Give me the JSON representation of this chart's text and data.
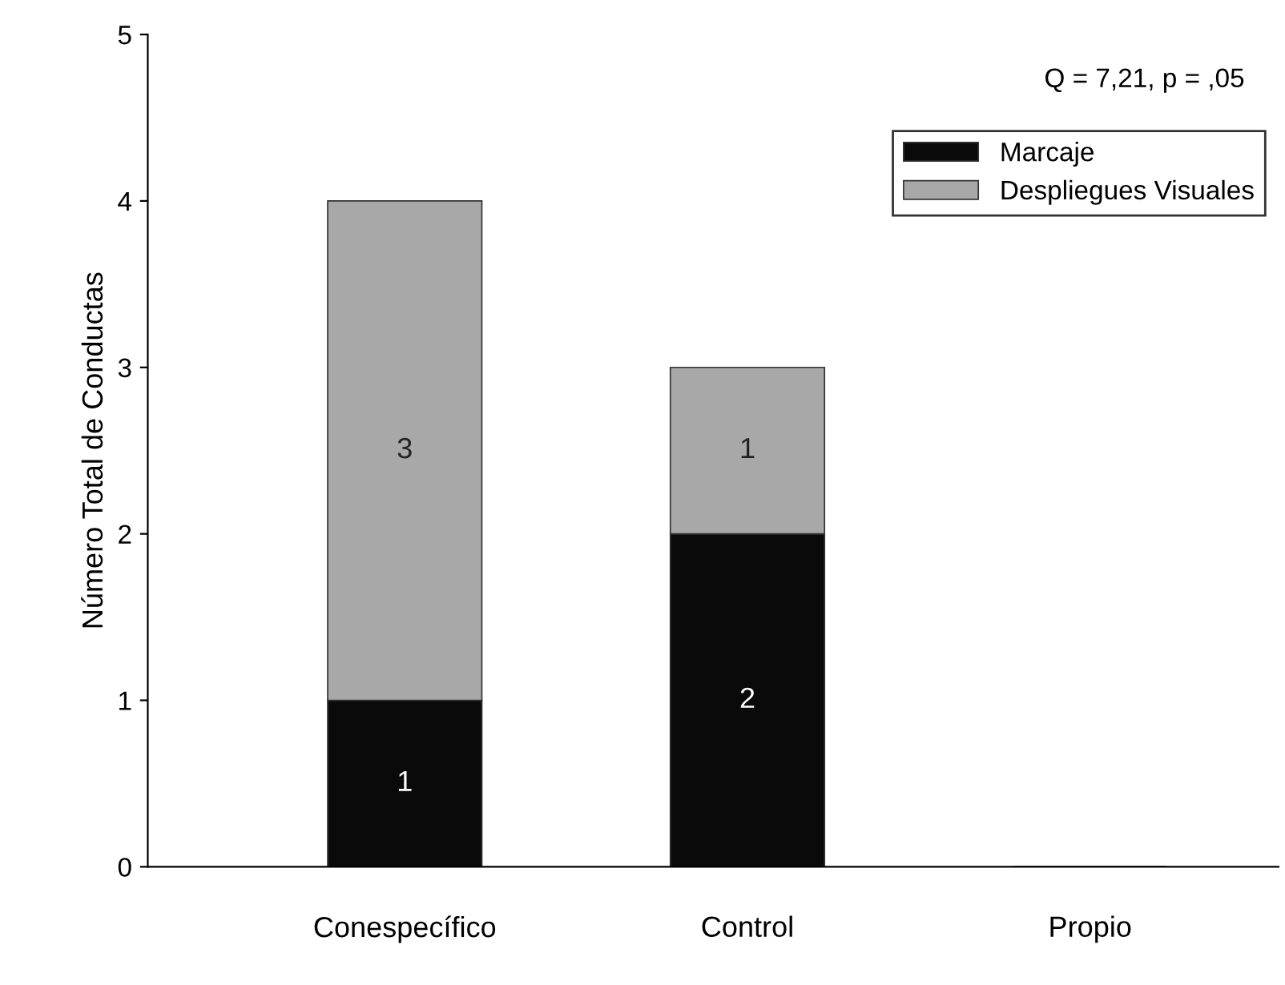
{
  "chart_data": {
    "type": "bar",
    "stacked": true,
    "ylabel": "Número Total de Conductas",
    "categories": [
      "Conespecífico",
      "Control",
      "Propio"
    ],
    "series": [
      {
        "name": "Marcaje",
        "color": "#0a0a0a",
        "values": [
          1,
          2,
          0
        ],
        "value_labels": [
          "1",
          "2",
          null
        ]
      },
      {
        "name": "Despliegues Visuales",
        "color": "#a8a8a8",
        "values": [
          3,
          1,
          0
        ],
        "value_labels": [
          "3",
          "1",
          null
        ]
      }
    ],
    "ylim": [
      0,
      5
    ],
    "yticks": [
      0,
      1,
      2,
      3,
      4,
      5
    ],
    "grid": false,
    "legend": "top right",
    "annotations": [
      "Q = 7,21, p = ,05"
    ]
  }
}
